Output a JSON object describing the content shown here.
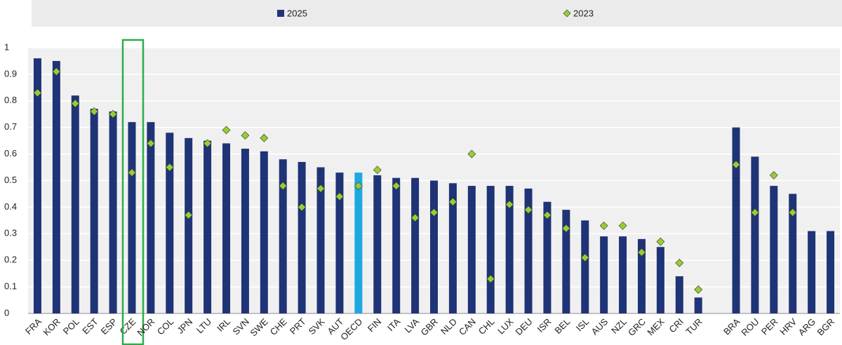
{
  "chart_data": {
    "type": "bar",
    "categories": [
      "FRA",
      "KOR",
      "POL",
      "EST",
      "ESP",
      "CZE",
      "NOR",
      "COL",
      "JPN",
      "LTU",
      "IRL",
      "SVN",
      "SWE",
      "CHE",
      "PRT",
      "SVK",
      "AUT",
      "OECD",
      "FIN",
      "ITA",
      "LVA",
      "GBR",
      "NLD",
      "CAN",
      "CHL",
      "LUX",
      "DEU",
      "ISR",
      "BEL",
      "ISL",
      "AUS",
      "NZL",
      "GRC",
      "MEX",
      "CRI",
      "TUR",
      null,
      "BRA",
      "ROU",
      "PER",
      "HRV",
      "ARG",
      "BGR"
    ],
    "series": [
      {
        "name": "2025",
        "color": "#1f3476",
        "marker": "bar",
        "values": [
          0.96,
          0.95,
          0.82,
          0.77,
          0.76,
          0.72,
          0.72,
          0.68,
          0.66,
          0.65,
          0.64,
          0.62,
          0.61,
          0.58,
          0.57,
          0.55,
          0.53,
          0.53,
          0.52,
          0.51,
          0.51,
          0.5,
          0.49,
          0.48,
          0.48,
          0.48,
          0.47,
          0.42,
          0.39,
          0.35,
          0.29,
          0.29,
          0.28,
          0.25,
          0.14,
          0.06,
          null,
          0.7,
          0.59,
          0.48,
          0.45,
          0.31,
          0.31
        ]
      },
      {
        "name": "2023",
        "color": "#99cc33",
        "marker": "diamond",
        "values": [
          0.83,
          0.91,
          0.79,
          0.76,
          0.75,
          0.53,
          0.64,
          0.55,
          0.37,
          0.64,
          0.69,
          0.67,
          0.66,
          0.48,
          0.4,
          0.47,
          0.44,
          0.48,
          0.54,
          0.48,
          0.36,
          0.38,
          0.42,
          0.6,
          0.13,
          0.41,
          0.39,
          0.37,
          0.32,
          0.21,
          0.33,
          0.33,
          0.23,
          0.27,
          0.19,
          0.09,
          null,
          0.56,
          0.38,
          0.52,
          0.38,
          null,
          null
        ]
      }
    ],
    "highlight": {
      "category": "OECD",
      "color": "#1ea8e0"
    },
    "box": {
      "category": "CZE",
      "color": "#2aae4a"
    },
    "ylim": [
      0,
      1
    ],
    "yticks": [
      0,
      0.1,
      0.2,
      0.3,
      0.4,
      0.5,
      0.6,
      0.7,
      0.8,
      0.9,
      1
    ],
    "grid": true
  }
}
